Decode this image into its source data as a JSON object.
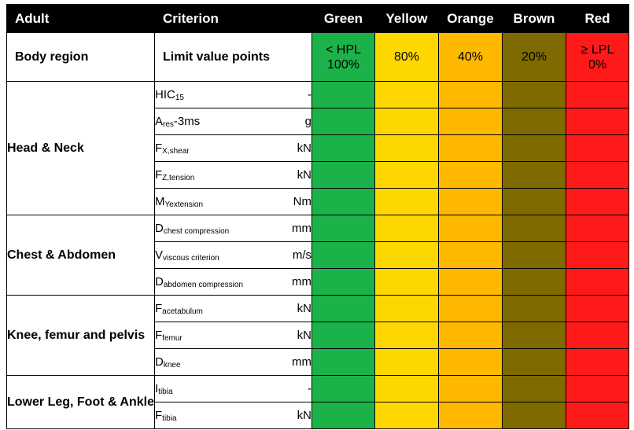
{
  "header": {
    "adult": "Adult",
    "criterion": "Criterion",
    "bands": [
      "Green",
      "Yellow",
      "Orange",
      "Brown",
      "Red"
    ]
  },
  "limits_row": {
    "body_region": "Body region",
    "limit_value_points": "Limit value points",
    "values": [
      {
        "line1": "< HPL",
        "line2": "100%"
      },
      {
        "line1": "80%",
        "line2": ""
      },
      {
        "line1": "40%",
        "line2": ""
      },
      {
        "line1": "20%",
        "line2": ""
      },
      {
        "line1": "≥ LPL",
        "line2": "0%"
      }
    ]
  },
  "colors": {
    "green": "#1cb24a",
    "yellow": "#ffd700",
    "orange": "#ffb800",
    "brown": "#7f6a00",
    "red": "#ff1a1a",
    "header_bg": "#000000"
  },
  "regions": [
    {
      "name": "Head & Neck",
      "criteria": [
        {
          "base": "HIC",
          "sub": "15",
          "unit": "-"
        },
        {
          "base": "A",
          "sub": "res",
          "suffix": "-3ms",
          "unit": "g"
        },
        {
          "base": "F",
          "sub": "X,shear",
          "unit": "kN"
        },
        {
          "base": "F",
          "sub": "Z,tension",
          "unit": "kN"
        },
        {
          "base": "M",
          "sub": "Yextension",
          "unit": "Nm"
        }
      ]
    },
    {
      "name": "Chest & Abdomen",
      "criteria": [
        {
          "base": "D",
          "sub": "chest compression",
          "unit": "mm"
        },
        {
          "base": "V",
          "sub": "viscous criterion",
          "unit": "m/s"
        },
        {
          "base": "D",
          "sub": "abdomen compression",
          "unit": "mm"
        }
      ]
    },
    {
      "name": "Knee, femur and pelvis",
      "criteria": [
        {
          "base": "F",
          "sub": "acetabulum",
          "unit": "kN"
        },
        {
          "base": "F",
          "sub": "femur",
          "unit": "kN"
        },
        {
          "base": "D",
          "sub": "knee",
          "unit": "mm"
        }
      ]
    },
    {
      "name": "Lower Leg, Foot & Ankle",
      "criteria": [
        {
          "base": "I",
          "sub": "tibia",
          "unit": "-"
        },
        {
          "base": "F",
          "sub": "tibia",
          "unit": "kN"
        }
      ]
    }
  ]
}
